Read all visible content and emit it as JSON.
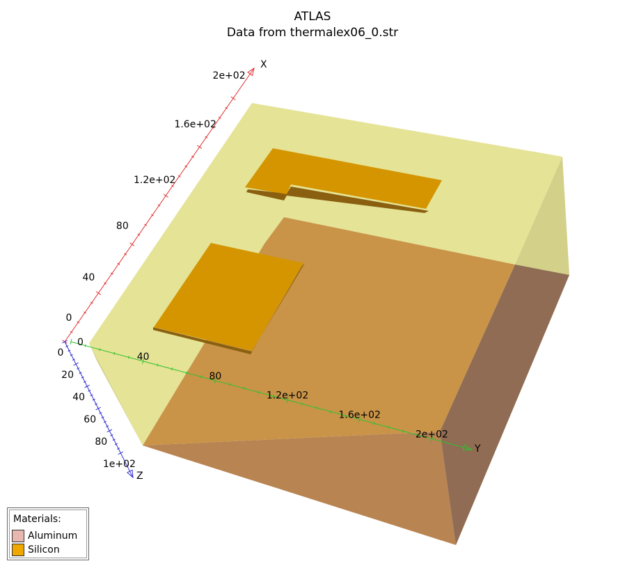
{
  "title": "ATLAS",
  "subtitle": "Data from thermalex06_0.str",
  "axes": {
    "x": {
      "label": "X",
      "ticks": [
        "0",
        "40",
        "80",
        "1.2e+02",
        "1.6e+02",
        "2e+02"
      ],
      "color": "#e03030"
    },
    "y": {
      "label": "Y",
      "ticks": [
        "0",
        "40",
        "80",
        "1.2e+02",
        "1.6e+02",
        "2e+02"
      ],
      "color": "#30c030"
    },
    "z": {
      "label": "Z",
      "ticks": [
        "0",
        "20",
        "40",
        "60",
        "80",
        "1e+02"
      ],
      "color": "#3030d0"
    }
  },
  "legend": {
    "header": "Materials:",
    "items": [
      {
        "name": "Aluminum",
        "color": "#e8b8b0"
      },
      {
        "name": "Silicon",
        "color": "#f0a800"
      }
    ]
  },
  "colors": {
    "silicon_top": "#e5e396",
    "silicon_side": "#d2d089",
    "aluminum_top": "#c99448",
    "aluminum_front": "#b88452",
    "aluminum_side": "#8f6c53",
    "pad": "#d49500",
    "pad_edge": "#8a6010"
  }
}
